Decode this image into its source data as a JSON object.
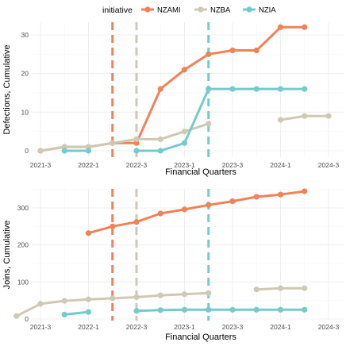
{
  "legend": {
    "title": "initiative",
    "placement": "top",
    "items": [
      {
        "label": "NZAMI",
        "color": "#F08257"
      },
      {
        "label": "NZBA",
        "color": "#CFC8B4"
      },
      {
        "label": "NZIA",
        "color": "#74CBCB"
      }
    ]
  },
  "chart_data": [
    {
      "type": "line",
      "xlabel": "Financial Quarters",
      "ylabel": "Defections, Cumulative",
      "x_ticks": [
        "2021-3",
        "2022-1",
        "2022-3",
        "2023-1",
        "2023-3",
        "2024-1",
        "2024-3"
      ],
      "ylim": [
        0,
        32
      ],
      "y_ticks": [
        0,
        10,
        20,
        30
      ],
      "grid": true,
      "vlines": [
        {
          "series": "NZAMI",
          "x": "2022-2",
          "style": "dashed"
        },
        {
          "series": "NZBA",
          "x": "2022-3",
          "style": "dashed"
        },
        {
          "series": "NZIA",
          "x": "2023-2",
          "style": "dashed"
        }
      ],
      "series": [
        {
          "name": "NZAMI",
          "color": "#F08257",
          "points": [
            [
              "2021-3",
              0
            ],
            [
              "2021-4",
              1
            ],
            [
              "2022-1",
              1
            ],
            [
              "2022-2",
              2
            ],
            [
              "2022-3",
              2
            ],
            [
              "2022-4",
              16
            ],
            [
              "2023-1",
              21
            ],
            [
              "2023-2",
              25
            ],
            [
              "2023-3",
              26
            ],
            [
              "2023-4",
              26
            ],
            [
              "2024-1",
              32
            ],
            [
              "2024-2",
              32
            ]
          ]
        },
        {
          "name": "NZBA",
          "color": "#CFC8B4",
          "points": [
            [
              "2021-3",
              0
            ],
            [
              "2021-4",
              1
            ],
            [
              "2022-1",
              1
            ],
            [
              "2022-2",
              2
            ],
            [
              "2022-3",
              3
            ],
            [
              "2022-4",
              3
            ],
            [
              "2023-1",
              5
            ],
            [
              "2023-2",
              7
            ],
            null,
            [
              "2024-1",
              8
            ],
            [
              "2024-2",
              9
            ],
            [
              "2024-3",
              9
            ]
          ]
        },
        {
          "name": "NZIA",
          "color": "#74CBCB",
          "points": [
            [
              "2021-4",
              0
            ],
            [
              "2022-1",
              0
            ],
            null,
            [
              "2022-3",
              0
            ],
            [
              "2022-4",
              0
            ],
            [
              "2023-1",
              2
            ],
            [
              "2023-2",
              16
            ],
            [
              "2023-3",
              16
            ],
            [
              "2023-4",
              16
            ],
            [
              "2024-1",
              16
            ],
            [
              "2024-2",
              16
            ]
          ]
        }
      ]
    },
    {
      "type": "line",
      "xlabel": "Financial Quarters",
      "ylabel": "Joins, Cumulative",
      "x_ticks": [
        "2021-3",
        "2022-1",
        "2022-3",
        "2023-1",
        "2023-3",
        "2024-1",
        "2024-3"
      ],
      "ylim": [
        0,
        345
      ],
      "y_ticks": [
        0,
        100,
        200,
        300
      ],
      "grid": true,
      "vlines": [
        {
          "series": "NZAMI",
          "x": "2022-2",
          "style": "dashed"
        },
        {
          "series": "NZBA",
          "x": "2022-3",
          "style": "dashed"
        },
        {
          "series": "NZIA",
          "x": "2023-2",
          "style": "dashed"
        }
      ],
      "series": [
        {
          "name": "NZAMI",
          "color": "#F08257",
          "points": [
            [
              "2022-1",
              232
            ],
            [
              "2022-2",
              250
            ],
            [
              "2022-3",
              262
            ],
            [
              "2022-4",
              285
            ],
            [
              "2023-1",
              296
            ],
            [
              "2023-2",
              308
            ],
            [
              "2023-3",
              318
            ],
            [
              "2023-4",
              330
            ],
            [
              "2024-1",
              336
            ],
            [
              "2024-2",
              345
            ]
          ]
        },
        {
          "name": "NZBA",
          "color": "#CFC8B4",
          "points": [
            [
              "2021-2",
              8
            ],
            [
              "2021-3",
              41
            ],
            [
              "2021-4",
              49
            ],
            [
              "2022-1",
              53
            ],
            [
              "2022-2",
              56
            ],
            [
              "2022-3",
              59
            ],
            [
              "2022-4",
              64
            ],
            [
              "2023-1",
              67
            ],
            [
              "2023-2",
              70
            ],
            null,
            [
              "2023-4",
              80
            ],
            [
              "2024-1",
              83
            ],
            [
              "2024-2",
              83
            ]
          ]
        },
        {
          "name": "NZIA",
          "color": "#74CBCB",
          "points": [
            [
              "2021-4",
              12
            ],
            [
              "2022-1",
              19
            ],
            null,
            [
              "2022-3",
              22
            ],
            [
              "2022-4",
              24
            ],
            [
              "2023-1",
              25
            ],
            [
              "2023-2",
              25
            ],
            [
              "2023-3",
              25
            ],
            [
              "2023-4",
              25
            ],
            [
              "2024-1",
              25
            ],
            [
              "2024-2",
              25
            ]
          ]
        }
      ]
    }
  ]
}
